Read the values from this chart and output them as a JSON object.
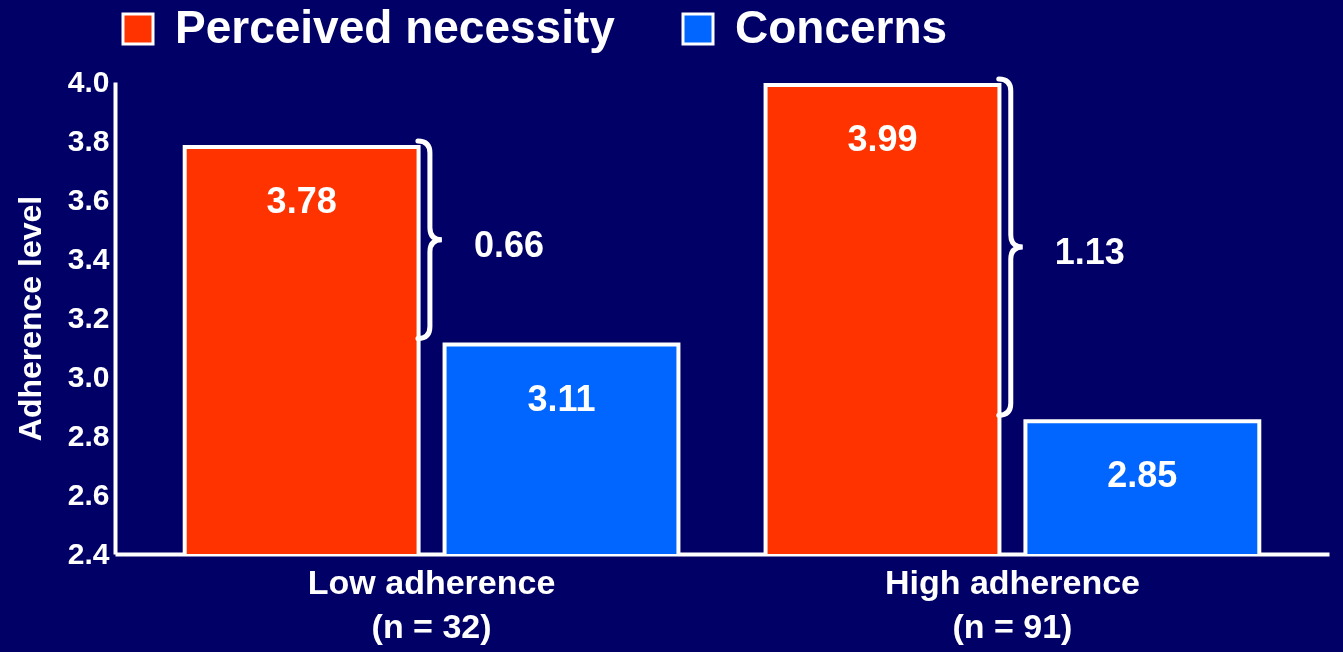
{
  "chart_data": {
    "type": "bar",
    "ylabel": "Adherence level",
    "categories": [
      "Low adherence\n(n = 32)",
      "High adherence\n(n = 91)"
    ],
    "series": [
      {
        "name": "Perceived necessity",
        "color": "#ff3300",
        "values": [
          3.78,
          3.99
        ]
      },
      {
        "name": "Concerns",
        "color": "#0066ff",
        "values": [
          3.11,
          2.85
        ]
      }
    ],
    "ylim": [
      2.4,
      4.0
    ],
    "yticks": [
      {
        "value": 2.4,
        "label": "2.4"
      },
      {
        "value": 2.6,
        "label": "2.6"
      },
      {
        "value": 2.8,
        "label": "2.8"
      },
      {
        "value": 3.0,
        "label": "3.0"
      },
      {
        "value": 3.2,
        "label": "3.2"
      },
      {
        "value": 3.4,
        "label": "3.4"
      },
      {
        "value": 3.6,
        "label": "3.6"
      },
      {
        "value": 3.8,
        "label": "3.8"
      },
      {
        "value": 4.0,
        "label": "4.0"
      }
    ],
    "data_labels": true,
    "legend": "top",
    "grid": false,
    "annotations": [
      "0.66",
      "1.13"
    ]
  }
}
